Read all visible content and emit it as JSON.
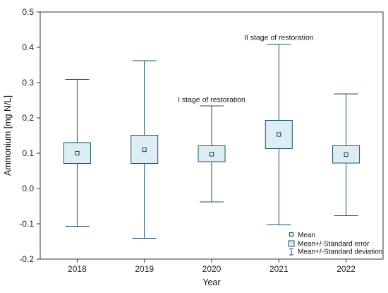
{
  "chart_data": {
    "type": "box",
    "categories": [
      "2018",
      "2019",
      "2020",
      "2021",
      "2022"
    ],
    "mean": [
      0.1,
      0.11,
      0.097,
      0.153,
      0.096
    ],
    "se_low": [
      0.071,
      0.071,
      0.076,
      0.113,
      0.072
    ],
    "se_high": [
      0.13,
      0.151,
      0.121,
      0.193,
      0.121
    ],
    "sd_low": [
      -0.107,
      -0.141,
      -0.038,
      -0.103,
      -0.077
    ],
    "sd_high": [
      0.309,
      0.362,
      0.234,
      0.408,
      0.268
    ],
    "xlabel": "Year",
    "ylabel": "Ammonium [mg N/L]",
    "ylim": [
      -0.2,
      0.5
    ],
    "yticks": [
      "-0.2",
      "-0.1",
      "0.0",
      "0.1",
      "0.2",
      "0.3",
      "0.4",
      "0.5"
    ],
    "grid": false,
    "annotations": [
      {
        "text": "I stage of restoration",
        "category": "2020",
        "y": 0.245
      },
      {
        "text": "II stage of restoration",
        "category": "2021",
        "y": 0.421
      }
    ],
    "legend": {
      "placement": "bottom-right",
      "entries": [
        "Mean",
        "Mean+/-Standard error",
        "Mean+/-Standard deviation"
      ]
    },
    "colors": {
      "box_fill": "#dcedf3",
      "stroke": "#1b4f6b",
      "text": "#111111"
    }
  }
}
